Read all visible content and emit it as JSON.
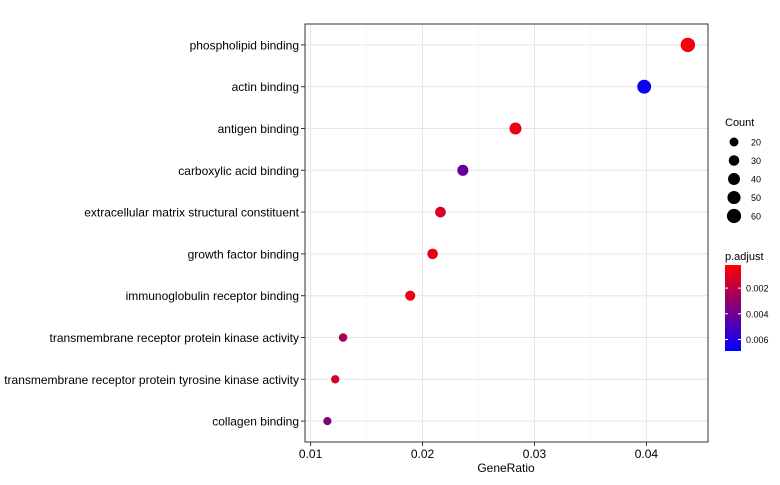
{
  "chart_data": {
    "type": "scatter",
    "xlabel": "GeneRatio",
    "ylabel": "",
    "xlim": [
      0.0095,
      0.0455
    ],
    "xticks": [
      0.01,
      0.02,
      0.03,
      0.04
    ],
    "xtick_labels": [
      "0.01",
      "0.02",
      "0.03",
      "0.04"
    ],
    "grid": true,
    "categories": [
      "phospholipid binding",
      "actin binding",
      "antigen binding",
      "carboxylic acid binding",
      "extracellular matrix structural constituent",
      "growth factor binding",
      "immunoglobulin receptor binding",
      "transmembrane receptor protein kinase activity",
      "transmembrane receptor protein tyrosine kinase activity",
      "collagen binding"
    ],
    "points": [
      {
        "term": "phospholipid binding",
        "gene_ratio": 0.0437,
        "count": 62,
        "p_adjust": 0.0005
      },
      {
        "term": "actin binding",
        "gene_ratio": 0.0398,
        "count": 57,
        "p_adjust": 0.0066
      },
      {
        "term": "antigen binding",
        "gene_ratio": 0.0283,
        "count": 41,
        "p_adjust": 0.0007
      },
      {
        "term": "carboxylic acid binding",
        "gene_ratio": 0.0236,
        "count": 34,
        "p_adjust": 0.0043
      },
      {
        "term": "extracellular matrix structural constituent",
        "gene_ratio": 0.0216,
        "count": 31,
        "p_adjust": 0.0012
      },
      {
        "term": "growth factor binding",
        "gene_ratio": 0.0209,
        "count": 30,
        "p_adjust": 0.0008
      },
      {
        "term": "immunoglobulin receptor binding",
        "gene_ratio": 0.0189,
        "count": 27,
        "p_adjust": 0.0007
      },
      {
        "term": "transmembrane receptor protein kinase activity",
        "gene_ratio": 0.0129,
        "count": 18,
        "p_adjust": 0.0025
      },
      {
        "term": "transmembrane receptor protein tyrosine kinase activity",
        "gene_ratio": 0.0122,
        "count": 17,
        "p_adjust": 0.0013
      },
      {
        "term": "collagen binding",
        "gene_ratio": 0.0115,
        "count": 16,
        "p_adjust": 0.0035
      }
    ],
    "legend_size": {
      "title": "Count",
      "values": [
        20,
        30,
        40,
        50,
        60
      ],
      "labels": [
        "20",
        "30",
        "40",
        "50",
        "60"
      ]
    },
    "legend_color": {
      "title": "p.adjust",
      "range": [
        0.0002,
        0.0069
      ],
      "ticks": [
        0.002,
        0.004,
        0.006
      ],
      "tick_labels": [
        "0.002",
        "0.004",
        "0.006"
      ],
      "low_color": "#ff0000",
      "high_color": "#0000ff"
    },
    "legend_position": "right"
  }
}
